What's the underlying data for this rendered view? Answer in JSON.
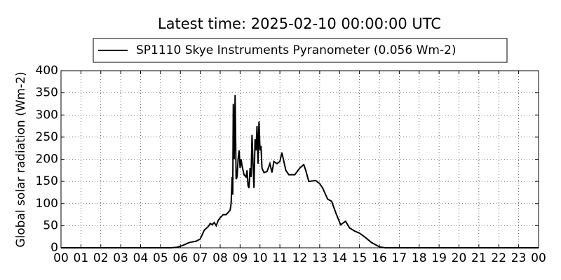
{
  "chart_data": {
    "type": "line",
    "title": "Latest time: 2025-02-10 00:00:00 UTC",
    "y_label": "Global solar radiation (Wm-2)",
    "legend": "top",
    "grid": true,
    "series": [
      {
        "name": "SP1110 Skye Instruments Pyranometer (0.056 Wm-2)",
        "color": "#000000",
        "x": [
          0,
          5.5,
          5.8,
          6.1,
          6.45,
          6.8,
          7.0,
          7.1,
          7.2,
          7.4,
          7.5,
          7.6,
          7.7,
          7.8,
          7.9,
          8.0,
          8.15,
          8.3,
          8.4,
          8.5,
          8.55,
          8.6,
          8.63,
          8.66,
          8.7,
          8.75,
          8.8,
          8.85,
          8.9,
          8.95,
          9.0,
          9.05,
          9.1,
          9.2,
          9.3,
          9.35,
          9.4,
          9.45,
          9.5,
          9.55,
          9.6,
          9.65,
          9.7,
          9.75,
          9.8,
          9.85,
          9.9,
          9.95,
          10.0,
          10.05,
          10.1,
          10.2,
          10.35,
          10.5,
          10.6,
          10.7,
          10.85,
          11.0,
          11.1,
          11.2,
          11.3,
          11.45,
          11.75,
          12.0,
          12.2,
          12.3,
          12.45,
          12.8,
          13.0,
          13.15,
          13.4,
          13.6,
          13.8,
          14.05,
          14.3,
          14.5,
          14.75,
          15.0,
          15.25,
          15.6,
          16.0,
          16.3,
          24
        ],
        "values": [
          0,
          0,
          1,
          5,
          12,
          15,
          20,
          30,
          40,
          48,
          55,
          52,
          57,
          50,
          62,
          68,
          75,
          75,
          80,
          85,
          100,
          160,
          120,
          325,
          200,
          345,
          155,
          160,
          200,
          220,
          180,
          200,
          185,
          165,
          160,
          175,
          140,
          135,
          180,
          160,
          255,
          190,
          135,
          245,
          220,
          275,
          190,
          285,
          220,
          230,
          180,
          170,
          172,
          190,
          170,
          195,
          190,
          195,
          215,
          195,
          175,
          165,
          165,
          180,
          188,
          175,
          150,
          152,
          145,
          135,
          110,
          105,
          80,
          52,
          60,
          45,
          38,
          33,
          25,
          12,
          2,
          0,
          0
        ]
      }
    ],
    "xlim": [
      0,
      24
    ],
    "xticks": [
      {
        "value": 0,
        "label": "00"
      },
      {
        "value": 1,
        "label": "01"
      },
      {
        "value": 2,
        "label": "02"
      },
      {
        "value": 3,
        "label": "03"
      },
      {
        "value": 4,
        "label": "04"
      },
      {
        "value": 5,
        "label": "05"
      },
      {
        "value": 6,
        "label": "06"
      },
      {
        "value": 7,
        "label": "07"
      },
      {
        "value": 8,
        "label": "08"
      },
      {
        "value": 9,
        "label": "09"
      },
      {
        "value": 10,
        "label": "10"
      },
      {
        "value": 11,
        "label": "11"
      },
      {
        "value": 12,
        "label": "12"
      },
      {
        "value": 13,
        "label": "13"
      },
      {
        "value": 14,
        "label": "14"
      },
      {
        "value": 15,
        "label": "15"
      },
      {
        "value": 16,
        "label": "16"
      },
      {
        "value": 17,
        "label": "17"
      },
      {
        "value": 18,
        "label": "18"
      },
      {
        "value": 19,
        "label": "19"
      },
      {
        "value": 20,
        "label": "20"
      },
      {
        "value": 21,
        "label": "21"
      },
      {
        "value": 22,
        "label": "22"
      },
      {
        "value": 23,
        "label": "23"
      },
      {
        "value": 24,
        "label": "00"
      }
    ],
    "ylim": [
      0,
      400
    ],
    "yticks": [
      0,
      50,
      100,
      150,
      200,
      250,
      300,
      350,
      400
    ]
  }
}
